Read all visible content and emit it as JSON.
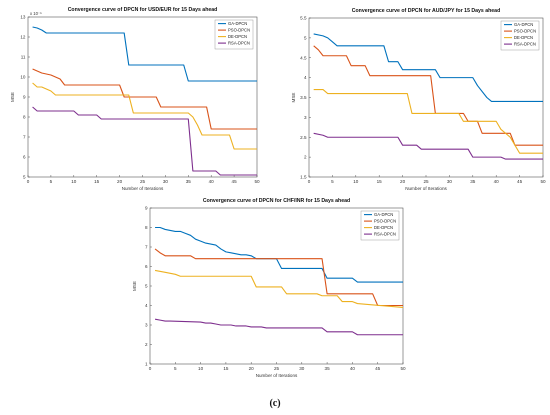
{
  "colors": {
    "GA-DPCN": "#0072bd",
    "PSO-DPCN": "#d95319",
    "DE-DPCN": "#edb120",
    "RSA-DPCN": "#7e2f8e"
  },
  "caption": "(c)",
  "chart_data": [
    {
      "type": "line",
      "title": "Convergence curve of DPCN for USD/EUR for 15 Days ahead",
      "xlabel": "Number of Iterations",
      "ylabel": "MSE",
      "exponent_label": "x 10⁻⁵",
      "xlim": [
        0,
        50
      ],
      "ylim": [
        5,
        13
      ],
      "xticks": [
        0,
        5,
        10,
        15,
        20,
        25,
        30,
        35,
        40,
        45,
        50
      ],
      "yticks": [
        5,
        6,
        7,
        8,
        9,
        10,
        11,
        12,
        13
      ],
      "grid": false,
      "legend_position": "top-right",
      "series": [
        {
          "name": "GA-DPCN",
          "x": [
            1,
            2,
            3,
            4,
            21,
            22,
            34,
            35,
            50
          ],
          "y": [
            12.5,
            12.45,
            12.35,
            12.2,
            12.2,
            10.6,
            10.6,
            9.8,
            9.8
          ]
        },
        {
          "name": "PSO-DPCN",
          "x": [
            1,
            2,
            3,
            4,
            5,
            6,
            7,
            8,
            9,
            20,
            21,
            28,
            29,
            39,
            40,
            50
          ],
          "y": [
            10.4,
            10.3,
            10.2,
            10.15,
            10.1,
            10.0,
            9.9,
            9.6,
            9.6,
            9.6,
            9.0,
            9.0,
            8.5,
            8.5,
            7.4,
            7.4
          ]
        },
        {
          "name": "DE-DPCN",
          "x": [
            1,
            2,
            3,
            4,
            5,
            6,
            22,
            23,
            35,
            36,
            37,
            38,
            44,
            45,
            50
          ],
          "y": [
            9.7,
            9.5,
            9.5,
            9.4,
            9.3,
            9.1,
            9.1,
            8.2,
            8.2,
            8.0,
            7.6,
            7.1,
            7.1,
            6.4,
            6.4
          ]
        },
        {
          "name": "RSA-DPCN",
          "x": [
            1,
            2,
            10,
            11,
            15,
            16,
            35,
            36,
            41,
            42,
            50
          ],
          "y": [
            8.5,
            8.3,
            8.3,
            8.1,
            8.1,
            7.9,
            7.9,
            5.3,
            5.3,
            5.1,
            5.1
          ]
        }
      ]
    },
    {
      "type": "line",
      "title": "Convergence curve of DPCN for AUD/JPY for 15 Days ahead",
      "xlabel": "Number of Iterations",
      "ylabel": "MSE",
      "xlim": [
        0,
        50
      ],
      "ylim": [
        1.5,
        5.5
      ],
      "xticks": [
        0,
        5,
        10,
        15,
        20,
        25,
        30,
        35,
        40,
        45,
        50
      ],
      "yticks": [
        1.5,
        2,
        2.5,
        3,
        3.5,
        4,
        4.5,
        5,
        5.5
      ],
      "grid": false,
      "legend_position": "top-right",
      "series": [
        {
          "name": "GA-DPCN",
          "x": [
            1,
            3,
            4,
            5,
            6,
            16,
            17,
            19,
            20,
            27,
            28,
            35,
            36,
            38,
            39,
            50
          ],
          "y": [
            5.1,
            5.05,
            5.0,
            4.9,
            4.8,
            4.8,
            4.4,
            4.4,
            4.2,
            4.2,
            4.0,
            4.0,
            3.8,
            3.5,
            3.4,
            3.4
          ]
        },
        {
          "name": "PSO-DPCN",
          "x": [
            1,
            2,
            3,
            8,
            9,
            12,
            13,
            26,
            27,
            33,
            34,
            36,
            37,
            43,
            44,
            50
          ],
          "y": [
            4.8,
            4.7,
            4.55,
            4.55,
            4.3,
            4.3,
            4.05,
            4.05,
            3.1,
            3.1,
            2.9,
            2.9,
            2.6,
            2.6,
            2.3,
            2.3
          ]
        },
        {
          "name": "DE-DPCN",
          "x": [
            1,
            3,
            4,
            21,
            22,
            32,
            33,
            40,
            41,
            43,
            44,
            45,
            50
          ],
          "y": [
            3.7,
            3.7,
            3.6,
            3.6,
            3.1,
            3.1,
            2.9,
            2.9,
            2.7,
            2.5,
            2.3,
            2.1,
            2.1
          ]
        },
        {
          "name": "RSA-DPCN",
          "x": [
            1,
            3,
            4,
            19,
            20,
            23,
            24,
            34,
            35,
            41,
            42,
            50
          ],
          "y": [
            2.6,
            2.55,
            2.5,
            2.5,
            2.3,
            2.3,
            2.2,
            2.2,
            2.0,
            2.0,
            1.95,
            1.95
          ]
        }
      ]
    },
    {
      "type": "line",
      "title": "Convergence curve of DPCN for CHF/INR for 15 Days ahead",
      "xlabel": "Number of Iterations",
      "ylabel": "MSE",
      "xlim": [
        0,
        50
      ],
      "ylim": [
        1,
        9
      ],
      "xticks": [
        0,
        5,
        10,
        15,
        20,
        25,
        30,
        35,
        40,
        45,
        50
      ],
      "yticks": [
        1,
        2,
        3,
        4,
        5,
        6,
        7,
        8,
        9
      ],
      "grid": false,
      "legend_position": "top-right",
      "series": [
        {
          "name": "GA-DPCN",
          "x": [
            1,
            2,
            3,
            4,
            5,
            6,
            7,
            8,
            9,
            10,
            11,
            12,
            13,
            14,
            15,
            16,
            17,
            18,
            19,
            20,
            21,
            25,
            26,
            34,
            35,
            40,
            41,
            50
          ],
          "y": [
            8.0,
            8.0,
            7.9,
            7.85,
            7.8,
            7.8,
            7.7,
            7.6,
            7.4,
            7.3,
            7.2,
            7.15,
            7.1,
            6.9,
            6.75,
            6.7,
            6.65,
            6.6,
            6.6,
            6.55,
            6.4,
            6.4,
            5.9,
            5.9,
            5.4,
            5.4,
            5.2,
            5.2
          ]
        },
        {
          "name": "PSO-DPCN",
          "x": [
            1,
            2,
            3,
            4,
            8,
            9,
            34,
            35,
            44,
            45,
            50
          ],
          "y": [
            6.9,
            6.7,
            6.55,
            6.55,
            6.55,
            6.4,
            6.4,
            4.6,
            4.6,
            4.0,
            4.0
          ]
        },
        {
          "name": "DE-DPCN",
          "x": [
            1,
            3,
            4,
            5,
            6,
            20,
            21,
            26,
            27,
            33,
            34,
            37,
            38,
            40,
            41,
            50
          ],
          "y": [
            5.8,
            5.7,
            5.65,
            5.6,
            5.5,
            5.5,
            4.95,
            4.95,
            4.6,
            4.6,
            4.5,
            4.5,
            4.2,
            4.2,
            4.1,
            3.9
          ]
        },
        {
          "name": "RSA-DPCN",
          "x": [
            1,
            2,
            3,
            4,
            10,
            11,
            12,
            13,
            14,
            15,
            16,
            17,
            18,
            19,
            20,
            21,
            22,
            23,
            24,
            34,
            35,
            40,
            41,
            50
          ],
          "y": [
            3.3,
            3.25,
            3.2,
            3.2,
            3.15,
            3.1,
            3.1,
            3.05,
            3.0,
            3.0,
            3.0,
            2.95,
            2.95,
            2.95,
            2.9,
            2.9,
            2.9,
            2.85,
            2.85,
            2.85,
            2.65,
            2.65,
            2.5,
            2.5
          ]
        }
      ]
    }
  ]
}
